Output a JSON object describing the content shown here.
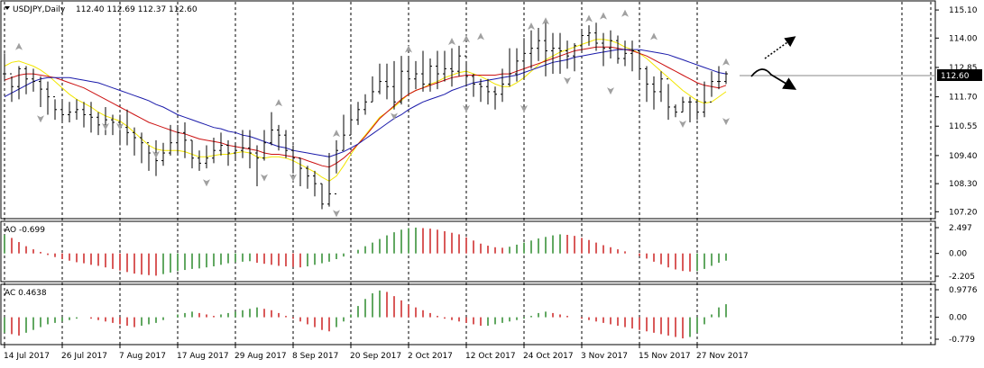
{
  "header": {
    "symbol_label": "USDJPY,Daily",
    "ohlc_label": "112.40 112.69 112.37 112.60",
    "current_price": "112.60"
  },
  "colors": {
    "bull": "#2e8b2e",
    "bear": "#cc2222",
    "ma_fast": "#f2e600",
    "ma_mid": "#cc1111",
    "ma_slow": "#1a1aaa",
    "bars": "#000000",
    "fractal": "#a0a0a0",
    "grid": "#000000",
    "price_box": "#000000",
    "price_text": "#ffffff"
  },
  "chart_data": [
    {
      "type": "ohlc",
      "panel": "main",
      "title": "USDJPY,Daily",
      "ylim": [
        107.0,
        115.35
      ],
      "y_ticks": [
        "115.10",
        "114.00",
        "112.85",
        "111.70",
        "110.55",
        "109.40",
        "108.30",
        "107.20"
      ],
      "x_ticks": [
        "14 Jul 2017",
        "26 Jul 2017",
        "7 Aug 2017",
        "17 Aug 2017",
        "29 Aug 2017",
        "8 Sep 2017",
        "20 Sep 2017",
        "2 Oct 2017",
        "12 Oct 2017",
        "24 Oct 2017",
        "3 Nov 2017",
        "15 Nov 2017",
        "27 Nov 2017"
      ],
      "close": [
        112.6,
        112.1,
        112.8,
        112.4,
        112.3,
        112.0,
        111.7,
        111.2,
        111.0,
        111.1,
        111.2,
        111.0,
        110.9,
        110.6,
        110.8,
        110.7,
        110.5,
        110.3,
        110.1,
        109.9,
        109.5,
        109.2,
        109.5,
        109.9,
        110.3,
        110.0,
        109.3,
        109.1,
        109.3,
        109.6,
        109.8,
        109.5,
        109.6,
        109.7,
        109.5,
        109.3,
        109.9,
        110.4,
        110.2,
        109.6,
        109.3,
        108.9,
        108.6,
        108.3,
        107.5,
        107.9,
        109.6,
        110.2,
        110.8,
        111.2,
        111.5,
        111.9,
        112.3,
        112.1,
        111.5,
        112.7,
        112.4,
        112.6,
        112.2,
        112.9,
        112.6,
        112.8,
        112.7,
        113.3,
        112.5,
        112.2,
        112.1,
        111.9,
        111.8,
        112.2,
        112.6,
        113.1,
        113.4,
        113.6,
        113.9,
        113.5,
        113.6,
        113.5,
        113.3,
        113.7,
        114.1,
        114.2,
        113.8,
        113.6,
        113.9,
        113.2,
        113.4,
        113.5,
        112.8,
        112.2,
        111.9,
        112.4,
        111.3,
        111.1,
        111.5,
        111.5,
        111.1,
        111.5,
        112.3,
        112.3,
        112.6
      ],
      "high": [
        113.4,
        112.5,
        112.9,
        112.9,
        112.8,
        112.5,
        112.3,
        111.6,
        111.6,
        111.5,
        111.6,
        111.5,
        111.5,
        111.1,
        111.3,
        111.0,
        111.0,
        111.2,
        110.5,
        110.3,
        109.8,
        110.0,
        109.9,
        110.6,
        110.6,
        110.7,
        110.0,
        109.6,
        109.8,
        110.1,
        110.3,
        110.0,
        109.9,
        110.4,
        110.4,
        109.8,
        110.4,
        111.1,
        110.6,
        110.4,
        109.8,
        109.3,
        109.0,
        108.8,
        108.3,
        109.5,
        110.0,
        111.0,
        111.4,
        111.5,
        111.8,
        112.5,
        113.0,
        113.0,
        113.1,
        113.3,
        113.2,
        113.1,
        113.5,
        113.2,
        113.5,
        113.5,
        113.6,
        113.7,
        113.1,
        112.6,
        112.4,
        112.4,
        112.1,
        112.8,
        113.6,
        113.6,
        114.0,
        114.3,
        114.4,
        114.6,
        114.2,
        114.2,
        113.9,
        113.8,
        114.3,
        114.5,
        114.6,
        114.2,
        114.3,
        114.1,
        113.9,
        113.9,
        113.5,
        112.9,
        112.5,
        112.7,
        112.2,
        111.4,
        111.7,
        111.7,
        111.6,
        112.3,
        112.7,
        112.9,
        112.7
      ],
      "low": [
        112.3,
        111.5,
        111.6,
        111.8,
        111.9,
        111.3,
        111.0,
        110.8,
        110.7,
        110.7,
        110.8,
        110.5,
        110.3,
        110.2,
        110.2,
        110.2,
        109.8,
        109.8,
        109.4,
        109.1,
        108.8,
        108.6,
        109.0,
        109.4,
        109.4,
        109.3,
        108.9,
        108.8,
        108.9,
        109.1,
        109.4,
        109.0,
        109.2,
        109.3,
        108.9,
        108.2,
        109.2,
        109.8,
        109.6,
        109.3,
        108.7,
        108.2,
        108.1,
        107.8,
        107.3,
        107.4,
        108.7,
        109.6,
        110.2,
        110.6,
        111.0,
        111.5,
        111.8,
        111.6,
        111.2,
        111.4,
        111.8,
        112.0,
        111.9,
        111.9,
        112.0,
        112.3,
        112.1,
        112.5,
        112.1,
        111.7,
        111.5,
        111.4,
        111.2,
        111.5,
        112.1,
        112.3,
        112.4,
        112.8,
        113.1,
        112.5,
        112.6,
        112.6,
        112.8,
        112.7,
        113.5,
        113.7,
        113.5,
        112.9,
        113.2,
        113.0,
        112.9,
        112.7,
        112.4,
        111.5,
        111.2,
        111.5,
        110.8,
        110.9,
        111.1,
        110.7,
        110.8,
        110.9,
        111.7,
        112.0,
        112.2
      ],
      "series": [
        {
          "role": "ma_fast",
          "values": [
            112.9,
            113.05,
            113.1,
            113.0,
            112.9,
            112.75,
            112.55,
            112.3,
            112.05,
            111.8,
            111.6,
            111.45,
            111.3,
            111.1,
            110.95,
            110.85,
            110.75,
            110.55,
            110.3,
            110.05,
            109.8,
            109.65,
            109.6,
            109.6,
            109.6,
            109.55,
            109.45,
            109.35,
            109.35,
            109.4,
            109.45,
            109.45,
            109.5,
            109.55,
            109.5,
            109.35,
            109.3,
            109.35,
            109.35,
            109.3,
            109.2,
            109.05,
            108.9,
            108.75,
            108.55,
            108.4,
            108.6,
            109.0,
            109.45,
            109.85,
            110.2,
            110.55,
            110.9,
            111.1,
            111.3,
            111.55,
            111.8,
            111.95,
            112.05,
            112.2,
            112.3,
            112.45,
            112.55,
            112.65,
            112.7,
            112.6,
            112.5,
            112.35,
            112.2,
            112.1,
            112.1,
            112.25,
            112.45,
            112.7,
            112.95,
            113.15,
            113.3,
            113.45,
            113.55,
            113.65,
            113.75,
            113.85,
            113.95,
            113.95,
            113.9,
            113.8,
            113.65,
            113.55,
            113.4,
            113.2,
            112.95,
            112.7,
            112.45,
            112.2,
            111.95,
            111.75,
            111.55,
            111.45,
            111.5,
            111.7,
            111.9
          ]
        },
        {
          "role": "ma_mid",
          "values": [
            112.35,
            112.45,
            112.55,
            112.6,
            112.6,
            112.55,
            112.5,
            112.45,
            112.35,
            112.25,
            112.15,
            112.05,
            111.9,
            111.75,
            111.6,
            111.45,
            111.3,
            111.15,
            111.0,
            110.85,
            110.7,
            110.6,
            110.5,
            110.4,
            110.3,
            110.25,
            110.15,
            110.05,
            110.0,
            109.95,
            109.9,
            109.8,
            109.75,
            109.7,
            109.65,
            109.6,
            109.5,
            109.45,
            109.45,
            109.4,
            109.35,
            109.3,
            109.2,
            109.1,
            109.0,
            108.95,
            109.1,
            109.3,
            109.55,
            109.85,
            110.15,
            110.5,
            110.85,
            111.1,
            111.35,
            111.6,
            111.8,
            111.95,
            112.05,
            112.15,
            112.25,
            112.35,
            112.45,
            112.5,
            112.55,
            112.55,
            112.55,
            112.55,
            112.55,
            112.6,
            112.6,
            112.7,
            112.8,
            112.9,
            113.0,
            113.1,
            113.2,
            113.3,
            113.4,
            113.5,
            113.55,
            113.6,
            113.65,
            113.65,
            113.65,
            113.6,
            113.55,
            113.5,
            113.4,
            113.3,
            113.15,
            113.0,
            112.85,
            112.7,
            112.55,
            112.4,
            112.25,
            112.15,
            112.1,
            112.05,
            112.15
          ]
        },
        {
          "role": "ma_slow",
          "values": [
            111.7,
            111.85,
            112.0,
            112.15,
            112.3,
            112.4,
            112.45,
            112.45,
            112.45,
            112.45,
            112.4,
            112.35,
            112.3,
            112.25,
            112.15,
            112.05,
            111.95,
            111.85,
            111.75,
            111.65,
            111.55,
            111.4,
            111.3,
            111.15,
            111.0,
            110.9,
            110.8,
            110.7,
            110.6,
            110.5,
            110.45,
            110.35,
            110.3,
            110.2,
            110.15,
            110.05,
            109.95,
            109.85,
            109.75,
            109.7,
            109.6,
            109.55,
            109.5,
            109.45,
            109.4,
            109.35,
            109.45,
            109.55,
            109.7,
            109.85,
            110.05,
            110.25,
            110.45,
            110.65,
            110.85,
            111.0,
            111.2,
            111.35,
            111.5,
            111.6,
            111.7,
            111.8,
            111.95,
            112.05,
            112.15,
            112.25,
            112.3,
            112.35,
            112.4,
            112.45,
            112.5,
            112.55,
            112.65,
            112.75,
            112.85,
            112.95,
            113.05,
            113.1,
            113.15,
            113.25,
            113.3,
            113.35,
            113.4,
            113.45,
            113.5,
            113.55,
            113.55,
            113.55,
            113.55,
            113.5,
            113.45,
            113.4,
            113.35,
            113.25,
            113.15,
            113.05,
            112.95,
            112.85,
            112.75,
            112.65,
            112.6
          ]
        }
      ],
      "fractals_up": [
        [
          2,
          113.6
        ],
        [
          38,
          111.4
        ],
        [
          46,
          110.2
        ],
        [
          56,
          113.5
        ],
        [
          62,
          113.8
        ],
        [
          64,
          113.9
        ],
        [
          66,
          114.0
        ],
        [
          73,
          114.4
        ],
        [
          75,
          114.6
        ],
        [
          81,
          114.7
        ],
        [
          83,
          114.8
        ],
        [
          86,
          114.9
        ],
        [
          90,
          114.0
        ],
        [
          100,
          113.0
        ]
      ],
      "fractals_down": [
        [
          5,
          110.9
        ],
        [
          14,
          110.6
        ],
        [
          16,
          110.6
        ],
        [
          21,
          109.5
        ],
        [
          28,
          108.4
        ],
        [
          36,
          108.6
        ],
        [
          40,
          108.6
        ],
        [
          46,
          107.2
        ],
        [
          54,
          111.0
        ],
        [
          64,
          111.3
        ],
        [
          72,
          111.3
        ],
        [
          78,
          112.4
        ],
        [
          84,
          112.0
        ],
        [
          94,
          110.7
        ],
        [
          100,
          110.8
        ]
      ]
    },
    {
      "type": "bar",
      "panel": "AO",
      "title": "AO -0.699",
      "ylim": [
        -2.205,
        2.497
      ],
      "y_ticks": [
        "2.497",
        "0.00",
        "-2.205"
      ],
      "values": [
        1.8,
        1.5,
        1.1,
        0.7,
        0.4,
        0.15,
        -0.15,
        -0.35,
        -0.55,
        -0.7,
        -0.85,
        -0.95,
        -1.1,
        -1.2,
        -1.35,
        -1.5,
        -1.65,
        -1.8,
        -1.95,
        -2.05,
        -2.1,
        -2.15,
        -2.0,
        -1.85,
        -1.7,
        -1.6,
        -1.5,
        -1.45,
        -1.35,
        -1.25,
        -1.1,
        -0.95,
        -0.85,
        -0.8,
        -0.75,
        -0.9,
        -1.0,
        -1.1,
        -1.2,
        -1.25,
        -1.3,
        -1.35,
        -1.25,
        -1.1,
        -0.95,
        -0.8,
        -0.55,
        -0.3,
        0.0,
        0.35,
        0.7,
        1.05,
        1.4,
        1.75,
        2.05,
        2.3,
        2.45,
        2.5,
        2.45,
        2.4,
        2.3,
        2.15,
        2.0,
        1.85,
        1.55,
        1.25,
        0.95,
        0.75,
        0.6,
        0.55,
        0.65,
        0.85,
        1.05,
        1.25,
        1.45,
        1.6,
        1.75,
        1.85,
        1.8,
        1.7,
        1.5,
        1.3,
        1.05,
        0.8,
        0.6,
        0.4,
        0.2,
        0.0,
        -0.25,
        -0.5,
        -0.8,
        -1.05,
        -1.35,
        -1.55,
        -1.7,
        -1.75,
        -1.7,
        -1.5,
        -1.2,
        -0.9,
        -0.699
      ]
    },
    {
      "type": "bar",
      "panel": "AC",
      "title": "AC 0.4638",
      "ylim": [
        -0.779,
        0.9776
      ],
      "y_ticks": [
        "0.9776",
        "0.00",
        "-0.779"
      ],
      "values": [
        -0.55,
        -0.6,
        -0.65,
        -0.55,
        -0.45,
        -0.35,
        -0.25,
        -0.2,
        -0.15,
        -0.1,
        -0.05,
        0.0,
        -0.05,
        -0.1,
        -0.15,
        -0.2,
        -0.25,
        -0.3,
        -0.35,
        -0.3,
        -0.25,
        -0.2,
        -0.1,
        0.0,
        0.1,
        0.15,
        0.2,
        0.15,
        0.1,
        0.05,
        0.1,
        0.15,
        0.2,
        0.25,
        0.3,
        0.35,
        0.3,
        0.25,
        0.15,
        0.05,
        -0.05,
        -0.15,
        -0.25,
        -0.35,
        -0.45,
        -0.5,
        -0.35,
        -0.15,
        0.1,
        0.4,
        0.65,
        0.85,
        0.95,
        0.9,
        0.75,
        0.6,
        0.45,
        0.35,
        0.25,
        0.15,
        0.05,
        -0.05,
        -0.1,
        -0.15,
        -0.2,
        -0.25,
        -0.3,
        -0.3,
        -0.25,
        -0.2,
        -0.15,
        -0.1,
        -0.05,
        0.05,
        0.15,
        0.2,
        0.15,
        0.1,
        0.05,
        0.0,
        -0.05,
        -0.1,
        -0.15,
        -0.2,
        -0.25,
        -0.3,
        -0.35,
        -0.4,
        -0.45,
        -0.5,
        -0.55,
        -0.6,
        -0.65,
        -0.7,
        -0.75,
        -0.7,
        -0.55,
        -0.25,
        0.1,
        0.35,
        0.4638
      ]
    }
  ]
}
